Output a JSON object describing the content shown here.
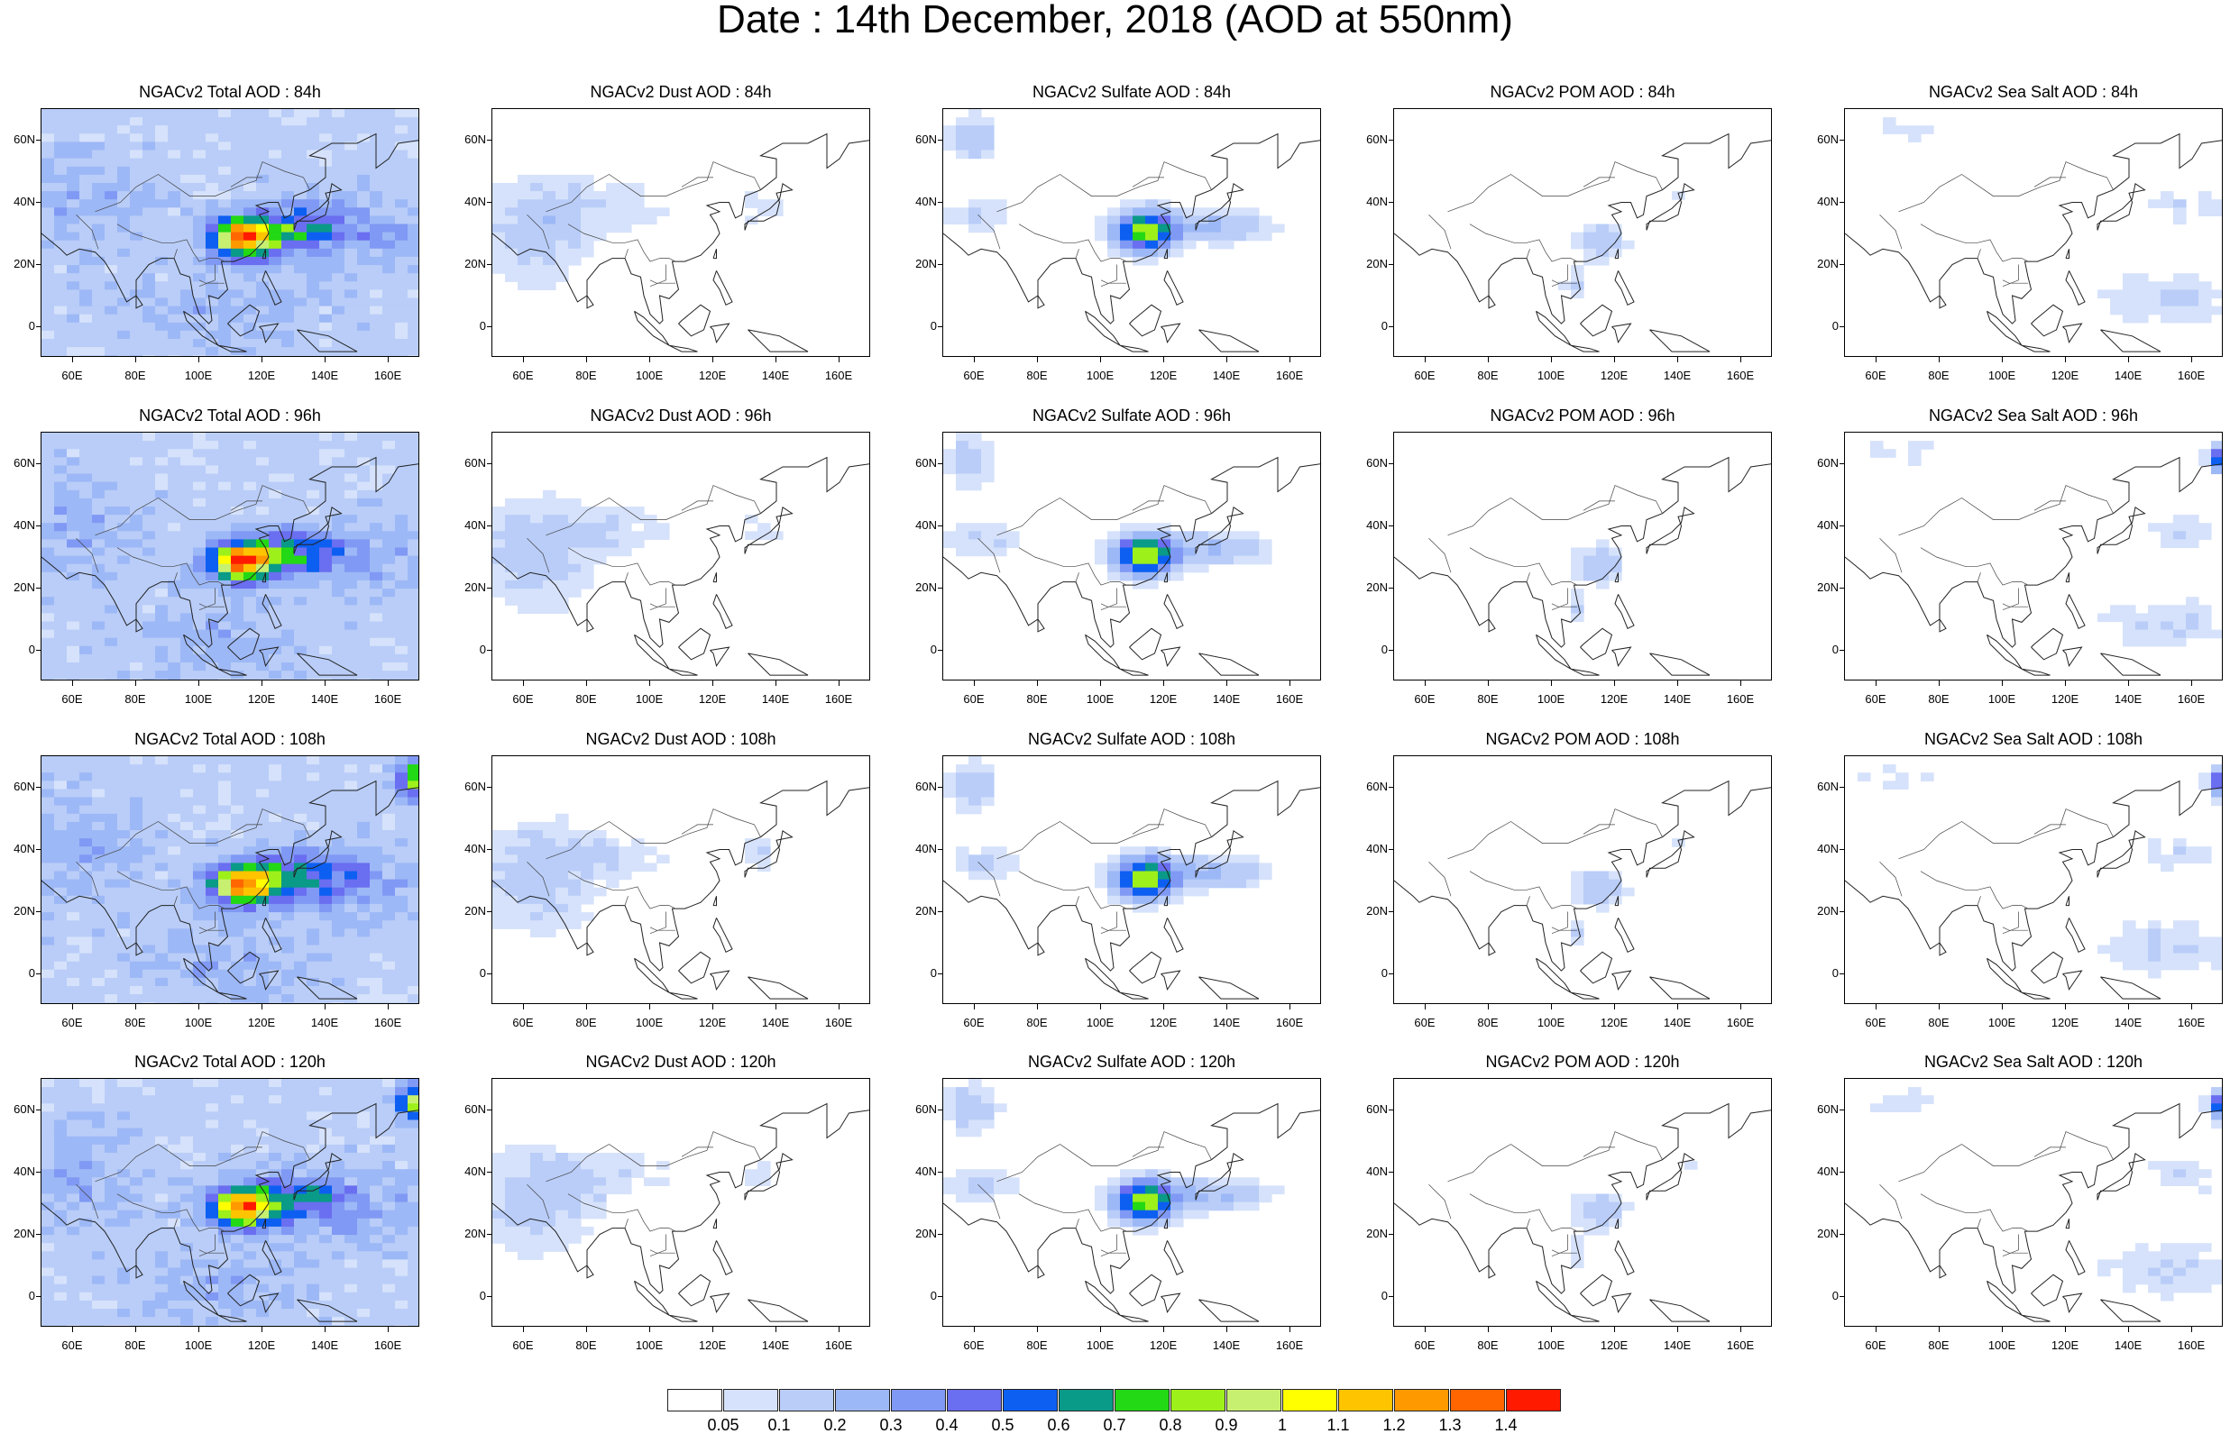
{
  "title": "Date : 14th December, 2018 (AOD at 550nm)",
  "axes": {
    "lat_labels": [
      "60N",
      "40N",
      "20N",
      "0"
    ],
    "lat_values": [
      60,
      40,
      20,
      0
    ],
    "lon_labels": [
      "60E",
      "80E",
      "100E",
      "120E",
      "140E",
      "160E"
    ],
    "lon_values": [
      60,
      80,
      100,
      120,
      140,
      160
    ],
    "lon_range": [
      50,
      170
    ],
    "lat_range": [
      -10,
      70
    ]
  },
  "panels": [
    {
      "title": "NGACv2 Total AOD : 84h",
      "species": "total",
      "forecast_hour": 84
    },
    {
      "title": "NGACv2 Dust AOD : 84h",
      "species": "dust",
      "forecast_hour": 84
    },
    {
      "title": "NGACv2 Sulfate AOD : 84h",
      "species": "sulfate",
      "forecast_hour": 84
    },
    {
      "title": "NGACv2 POM AOD : 84h",
      "species": "pom",
      "forecast_hour": 84
    },
    {
      "title": "NGACv2 Sea Salt AOD : 84h",
      "species": "seasalt",
      "forecast_hour": 84
    },
    {
      "title": "NGACv2 Total AOD : 96h",
      "species": "total",
      "forecast_hour": 96
    },
    {
      "title": "NGACv2 Dust AOD : 96h",
      "species": "dust",
      "forecast_hour": 96
    },
    {
      "title": "NGACv2 Sulfate AOD : 96h",
      "species": "sulfate",
      "forecast_hour": 96
    },
    {
      "title": "NGACv2 POM AOD : 96h",
      "species": "pom",
      "forecast_hour": 96
    },
    {
      "title": "NGACv2 Sea Salt AOD : 96h",
      "species": "seasalt",
      "forecast_hour": 96
    },
    {
      "title": "NGACv2 Total AOD : 108h",
      "species": "total",
      "forecast_hour": 108
    },
    {
      "title": "NGACv2 Dust AOD : 108h",
      "species": "dust",
      "forecast_hour": 108
    },
    {
      "title": "NGACv2 Sulfate AOD : 108h",
      "species": "sulfate",
      "forecast_hour": 108
    },
    {
      "title": "NGACv2 POM AOD : 108h",
      "species": "pom",
      "forecast_hour": 108
    },
    {
      "title": "NGACv2 Sea Salt AOD : 108h",
      "species": "seasalt",
      "forecast_hour": 108
    },
    {
      "title": "NGACv2 Total AOD : 120h",
      "species": "total",
      "forecast_hour": 120
    },
    {
      "title": "NGACv2 Dust AOD : 120h",
      "species": "dust",
      "forecast_hour": 120
    },
    {
      "title": "NGACv2 Sulfate AOD : 120h",
      "species": "sulfate",
      "forecast_hour": 120
    },
    {
      "title": "NGACv2 POM AOD : 120h",
      "species": "pom",
      "forecast_hour": 120
    },
    {
      "title": "NGACv2 Sea Salt  AOD : 120h",
      "species": "seasalt",
      "forecast_hour": 120
    }
  ],
  "colorbar": {
    "labels": [
      "0.05",
      "0.1",
      "0.2",
      "0.3",
      "0.4",
      "0.5",
      "0.6",
      "0.7",
      "0.8",
      "0.9",
      "1",
      "1.1",
      "1.2",
      "1.3",
      "1.4"
    ],
    "colors": [
      "#ffffff",
      "#d6e2fb",
      "#b9cdf8",
      "#9db8f6",
      "#8099f4",
      "#6a6ef0",
      "#0d5ff2",
      "#0a9a88",
      "#23d814",
      "#9ef01a",
      "#c8f070",
      "#ffff00",
      "#ffc400",
      "#ff9900",
      "#ff6600",
      "#ff1a00"
    ]
  }
}
